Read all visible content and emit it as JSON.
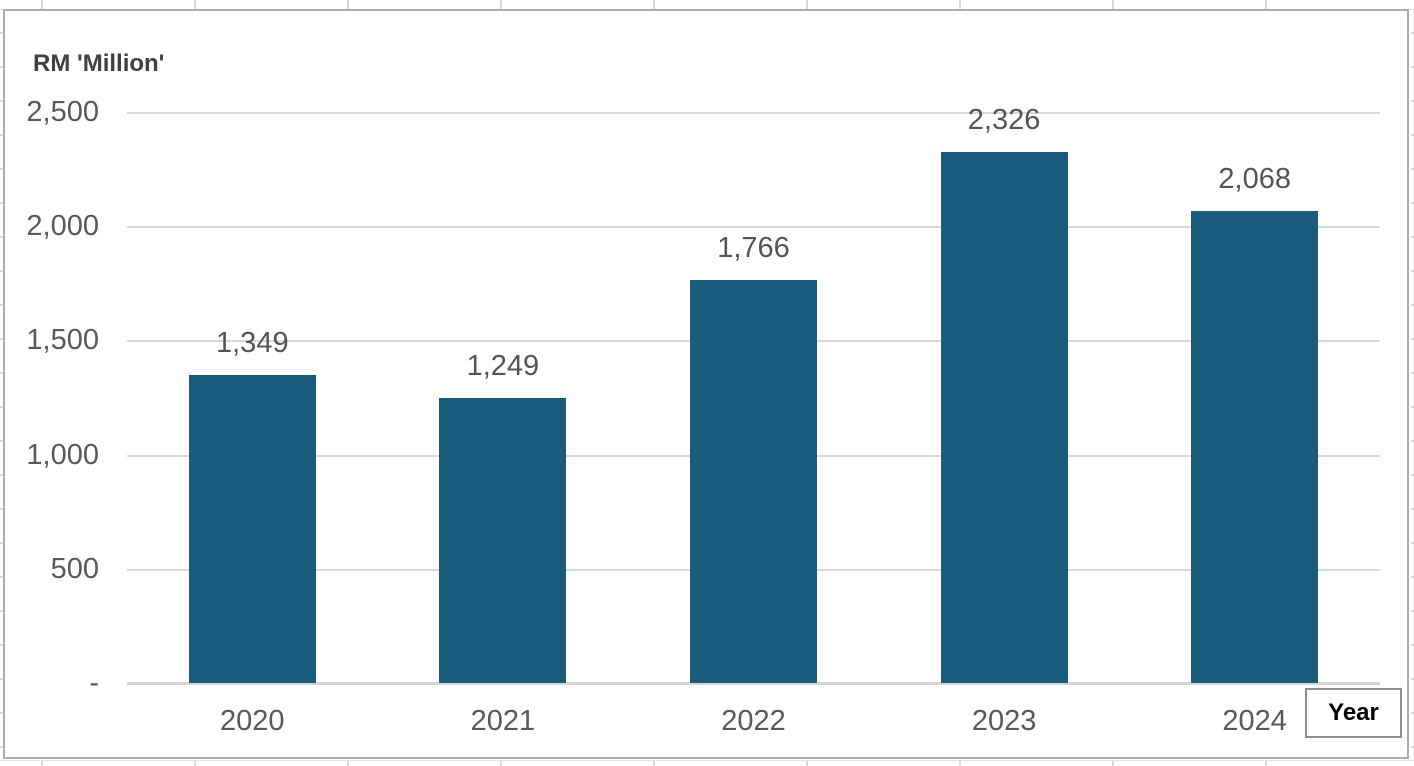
{
  "chart_data": {
    "type": "bar",
    "title": "RM 'Million'",
    "xlabel": "Year",
    "ylabel": "RM 'Million'",
    "categories": [
      "2020",
      "2021",
      "2022",
      "2023",
      "2024"
    ],
    "values": [
      1349,
      1249,
      1766,
      2326,
      2068
    ],
    "data_labels": [
      "1,349",
      "1,249",
      "1,766",
      "2,326",
      "2,068"
    ],
    "yticks": [
      "2,500",
      "2,000",
      "1,500",
      "1,000",
      "500",
      "-"
    ],
    "ylim": [
      0,
      2500
    ],
    "ytick_interval": 500,
    "grid": true,
    "legend": "none",
    "bar_color": "#1a5c7e",
    "gridline_color": "#d9d9d9",
    "axis_line_color": "#d6d6d6",
    "tick_label_color": "#595959",
    "data_label_color": "#545454",
    "title_color": "#404040",
    "chart_border_color": "#acacac"
  }
}
